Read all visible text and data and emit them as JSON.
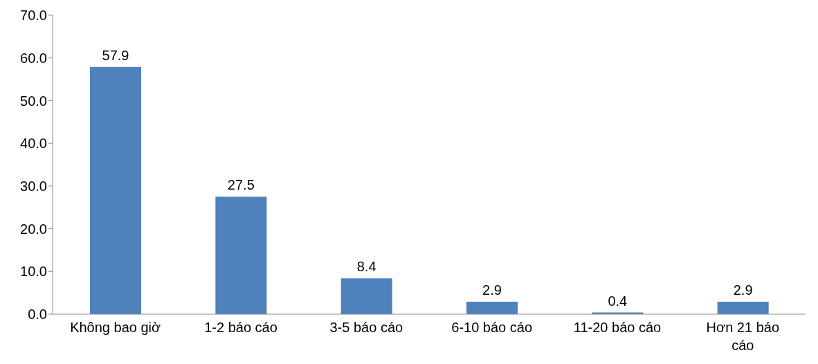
{
  "chart_data": {
    "type": "bar",
    "categories": [
      "Không bao giờ",
      "1-2 báo cáo",
      "3-5 báo cáo",
      "6-10 báo cáo",
      "11-20 báo cáo",
      "Hơn 21 báo cáo"
    ],
    "values": [
      57.9,
      27.5,
      8.4,
      2.9,
      0.4,
      2.9
    ],
    "color": "#4f81bd",
    "ylim": [
      0,
      70
    ],
    "yticks": [
      {
        "value": 0,
        "label": "0.0"
      },
      {
        "value": 10,
        "label": "10.0"
      },
      {
        "value": 20,
        "label": "20.0"
      },
      {
        "value": 30,
        "label": "30.0"
      },
      {
        "value": 40,
        "label": "40.0"
      },
      {
        "value": 50,
        "label": "50.0"
      },
      {
        "value": 60,
        "label": "60.0"
      },
      {
        "value": 70,
        "label": "70.0"
      }
    ],
    "data_labels": true,
    "grid": false,
    "legend": false
  }
}
